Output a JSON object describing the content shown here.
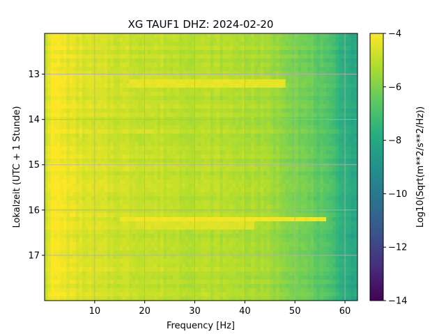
{
  "chart_data": {
    "type": "heatmap",
    "title": "XG TAUF1  DHZ: 2024-02-20",
    "xlabel": "Frequency [Hz]",
    "ylabel": "Lokalzeit (UTC + 1 Stunde)",
    "colorbar_label": "Log10(Sqrt(m**2/s**2/Hz))",
    "colormap": "viridis",
    "xlim": [
      0,
      62.5
    ],
    "ylim": [
      18.0,
      12.1
    ],
    "clim": [
      -14,
      -4
    ],
    "x_ticks": [
      10,
      20,
      30,
      40,
      50,
      60
    ],
    "x_tick_labels": [
      "10",
      "20",
      "30",
      "40",
      "50",
      "60"
    ],
    "y_ticks": [
      13,
      14,
      15,
      16,
      17
    ],
    "y_tick_labels": [
      "13",
      "14",
      "15",
      "16",
      "17"
    ],
    "colorbar_ticks": [
      -4,
      -6,
      -8,
      -10,
      -12,
      -14
    ],
    "colorbar_tick_labels": [
      "−4",
      "−6",
      "−8",
      "−10",
      "−12",
      "−14"
    ],
    "grid": true,
    "frequency_profile": {
      "frequency_hz": [
        0,
        1,
        2,
        4,
        6,
        10,
        15,
        20,
        25,
        30,
        35,
        40,
        45,
        50,
        55,
        58,
        60,
        62.5
      ],
      "log10_amplitude": [
        -4.9,
        -4.2,
        -4.05,
        -4.25,
        -4.45,
        -4.65,
        -4.75,
        -4.85,
        -4.95,
        -5.05,
        -5.1,
        -5.2,
        -5.45,
        -5.9,
        -6.6,
        -7.2,
        -7.7,
        -8.1
      ]
    },
    "bright_bands": [
      {
        "time": 13.22,
        "freq_range": [
          17,
          48
        ],
        "log10_amplitude": -4.35
      },
      {
        "time": 14.25,
        "freq_range": [
          18,
          22
        ],
        "log10_amplitude": -4.5
      },
      {
        "time": 16.18,
        "freq_range": [
          15,
          56
        ],
        "log10_amplitude": -4.2
      },
      {
        "time": 16.36,
        "freq_range": [
          18,
          42
        ],
        "log10_amplitude": -4.5
      }
    ]
  }
}
